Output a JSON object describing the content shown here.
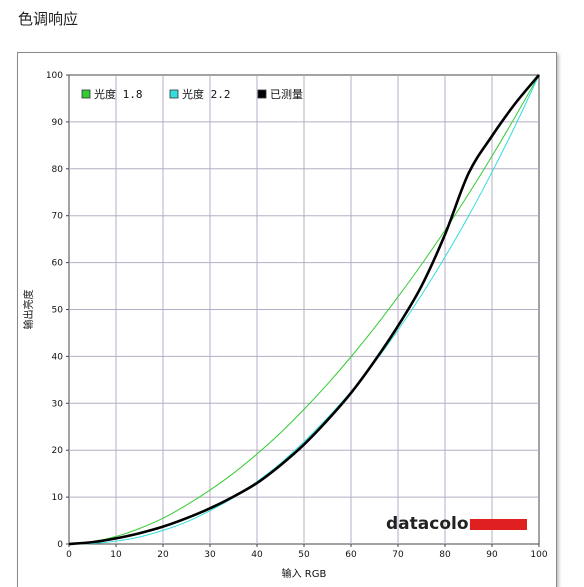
{
  "page": {
    "title": "色调响应"
  },
  "brand": {
    "name": "datacolor",
    "bar_color": "#e02020"
  },
  "chart_data": {
    "type": "line",
    "title": "色调响应",
    "xlabel": "输入 RGB",
    "ylabel": "输出亮度",
    "xlim": [
      0,
      100
    ],
    "ylim": [
      0,
      100
    ],
    "xticks": [
      0,
      10,
      20,
      30,
      40,
      50,
      60,
      70,
      80,
      90,
      100
    ],
    "yticks": [
      0,
      10,
      20,
      30,
      40,
      50,
      60,
      70,
      80,
      90,
      100
    ],
    "grid": true,
    "legend_position": "top-left",
    "series": [
      {
        "name": "光度 1.8",
        "color": "#33cc33",
        "x": [
          0,
          5,
          10,
          15,
          20,
          25,
          30,
          35,
          40,
          45,
          50,
          55,
          60,
          65,
          70,
          75,
          80,
          85,
          90,
          95,
          100
        ],
        "y": [
          0,
          0.5,
          1.6,
          3.3,
          5.5,
          8.3,
          11.5,
          15.1,
          19.2,
          23.7,
          28.7,
          34.1,
          39.9,
          46.1,
          52.7,
          59.6,
          66.9,
          74.6,
          82.7,
          91.2,
          100
        ]
      },
      {
        "name": "光度 2.2",
        "color": "#33dddd",
        "x": [
          0,
          5,
          10,
          15,
          20,
          25,
          30,
          35,
          40,
          45,
          50,
          55,
          60,
          65,
          70,
          75,
          80,
          85,
          90,
          95,
          100
        ],
        "y": [
          0,
          0.1,
          0.6,
          1.5,
          2.9,
          4.7,
          7.1,
          9.9,
          13.3,
          17.2,
          21.8,
          26.9,
          32.5,
          38.7,
          45.6,
          53.1,
          61.2,
          69.9,
          79.3,
          89.3,
          100
        ]
      },
      {
        "name": "已测量",
        "color": "#000000",
        "x": [
          0,
          5,
          10,
          15,
          20,
          25,
          30,
          35,
          40,
          45,
          50,
          55,
          60,
          65,
          70,
          75,
          80,
          85,
          90,
          95,
          100
        ],
        "y": [
          0,
          0.4,
          1.2,
          2.3,
          3.7,
          5.5,
          7.6,
          10.1,
          13.0,
          16.8,
          21.2,
          26.4,
          32.2,
          39.0,
          46.5,
          55.0,
          66.0,
          79.0,
          87.0,
          94.0,
          100
        ]
      }
    ]
  }
}
